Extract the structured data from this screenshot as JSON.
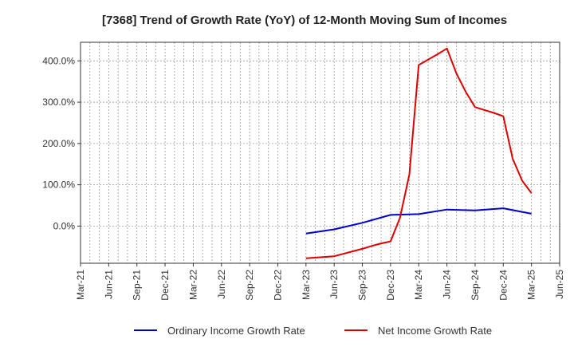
{
  "chart_data": {
    "type": "line",
    "title": "[7368]  Trend of Growth Rate (YoY) of 12-Month Moving Sum of Incomes",
    "xlabel": "",
    "ylabel": "",
    "x_ticks": [
      "Mar-21",
      "Jun-21",
      "Sep-21",
      "Dec-21",
      "Mar-22",
      "Jun-22",
      "Sep-22",
      "Dec-22",
      "Mar-23",
      "Jun-23",
      "Sep-23",
      "Dec-23",
      "Mar-24",
      "Jun-24",
      "Sep-24",
      "Dec-24",
      "Mar-25",
      "Jun-25"
    ],
    "y_ticks": [
      0,
      100,
      200,
      300,
      400
    ],
    "y_tick_labels": [
      "0.0%",
      "100.0%",
      "200.0%",
      "300.0%",
      "400.0%"
    ],
    "ylim": [
      -90,
      445
    ],
    "grid": true,
    "legend_position": "bottom",
    "series": [
      {
        "name": "Ordinary Income Growth Rate",
        "color": "#0000cc",
        "x": [
          "Mar-23",
          "Jun-23",
          "Sep-23",
          "Dec-23",
          "Mar-24",
          "Jun-24",
          "Sep-24",
          "Dec-24",
          "Mar-25"
        ],
        "values": [
          -18,
          -8,
          8,
          27,
          29,
          40,
          38,
          43,
          30
        ]
      },
      {
        "name": "Net Income Growth Rate",
        "color": "#dd0000",
        "x": [
          "Mar-23",
          "Jun-23",
          "Sep-23",
          "Oct-23",
          "Nov-23",
          "Dec-23",
          "Jan-24",
          "Feb-24",
          "Mar-24",
          "Apr-24",
          "May-24",
          "Jun-24",
          "Jul-24",
          "Aug-24",
          "Sep-24",
          "Oct-24",
          "Nov-24",
          "Dec-24",
          "Jan-25",
          "Feb-25",
          "Mar-25"
        ],
        "values": [
          -78,
          -73,
          -55,
          -48,
          -42,
          -37,
          20,
          125,
          390,
          403,
          416,
          430,
          370,
          325,
          288,
          281,
          274,
          266,
          163,
          110,
          80
        ]
      }
    ]
  }
}
